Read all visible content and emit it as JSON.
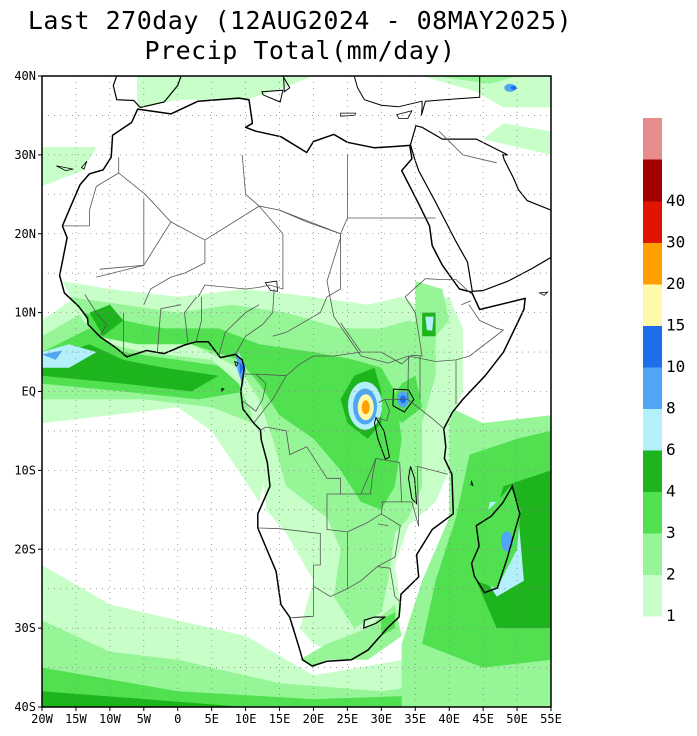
{
  "title": {
    "line1": "Last 270day (12AUG2024 - 08MAY2025)",
    "line2": "Precip Total(mm/day)"
  },
  "map": {
    "region": "Africa",
    "lon_range": [
      -20,
      55
    ],
    "lat_range": [
      -40,
      40
    ],
    "lat_labels": [
      "40N",
      "30N",
      "20N",
      "10N",
      "EQ",
      "10S",
      "20S",
      "30S",
      "40S"
    ],
    "lon_labels": [
      "20W",
      "15W",
      "10W",
      "5W",
      "0",
      "5E",
      "10E",
      "15E",
      "20E",
      "25E",
      "30E",
      "35E",
      "40E",
      "45E",
      "50E",
      "55E"
    ],
    "grid": "dotted"
  },
  "colorbar": {
    "levels": [
      {
        "label": "1",
        "color": "#c8ffc8"
      },
      {
        "label": "2",
        "color": "#96f596"
      },
      {
        "label": "3",
        "color": "#50e050"
      },
      {
        "label": "4",
        "color": "#1eb41e"
      },
      {
        "label": "6",
        "color": "#b4f0fa"
      },
      {
        "label": "8",
        "color": "#50a5f5"
      },
      {
        "label": "10",
        "color": "#1e6eeb"
      },
      {
        "label": "15",
        "color": "#fffaaa"
      },
      {
        "label": "20",
        "color": "#ffa000"
      },
      {
        "label": "30",
        "color": "#e11400"
      },
      {
        "label": "40",
        "color": "#a50000"
      }
    ],
    "top_color": "#e68c8c"
  }
}
